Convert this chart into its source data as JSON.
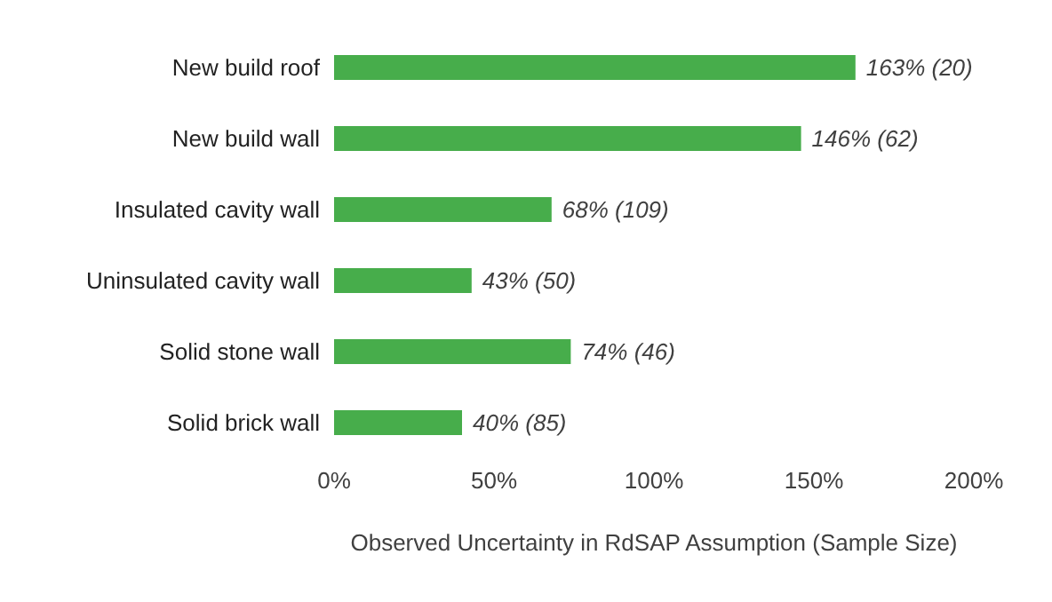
{
  "chart_data": {
    "type": "bar",
    "orientation": "horizontal",
    "xlabel": "Observed Uncertainty in RdSAP Assumption (Sample Size)",
    "categories": [
      "New build roof",
      "New build wall",
      "Insulated cavity wall",
      "Uninsulated cavity wall",
      "Solid stone wall",
      "Solid brick wall"
    ],
    "values": [
      163,
      146,
      68,
      43,
      74,
      40
    ],
    "value_labels": [
      "163% (20)",
      "146% (62)",
      "68% (109)",
      "43% (50)",
      "74% (46)",
      "40% (85)"
    ],
    "color": "#47ad4b",
    "xlim": [
      0,
      200
    ],
    "xticks": [
      {
        "value": 0,
        "label": "0%"
      },
      {
        "value": 50,
        "label": "50%"
      },
      {
        "value": 100,
        "label": "100%"
      },
      {
        "value": 150,
        "label": "150%"
      },
      {
        "value": 200,
        "label": "200%"
      }
    ],
    "grid": false
  }
}
